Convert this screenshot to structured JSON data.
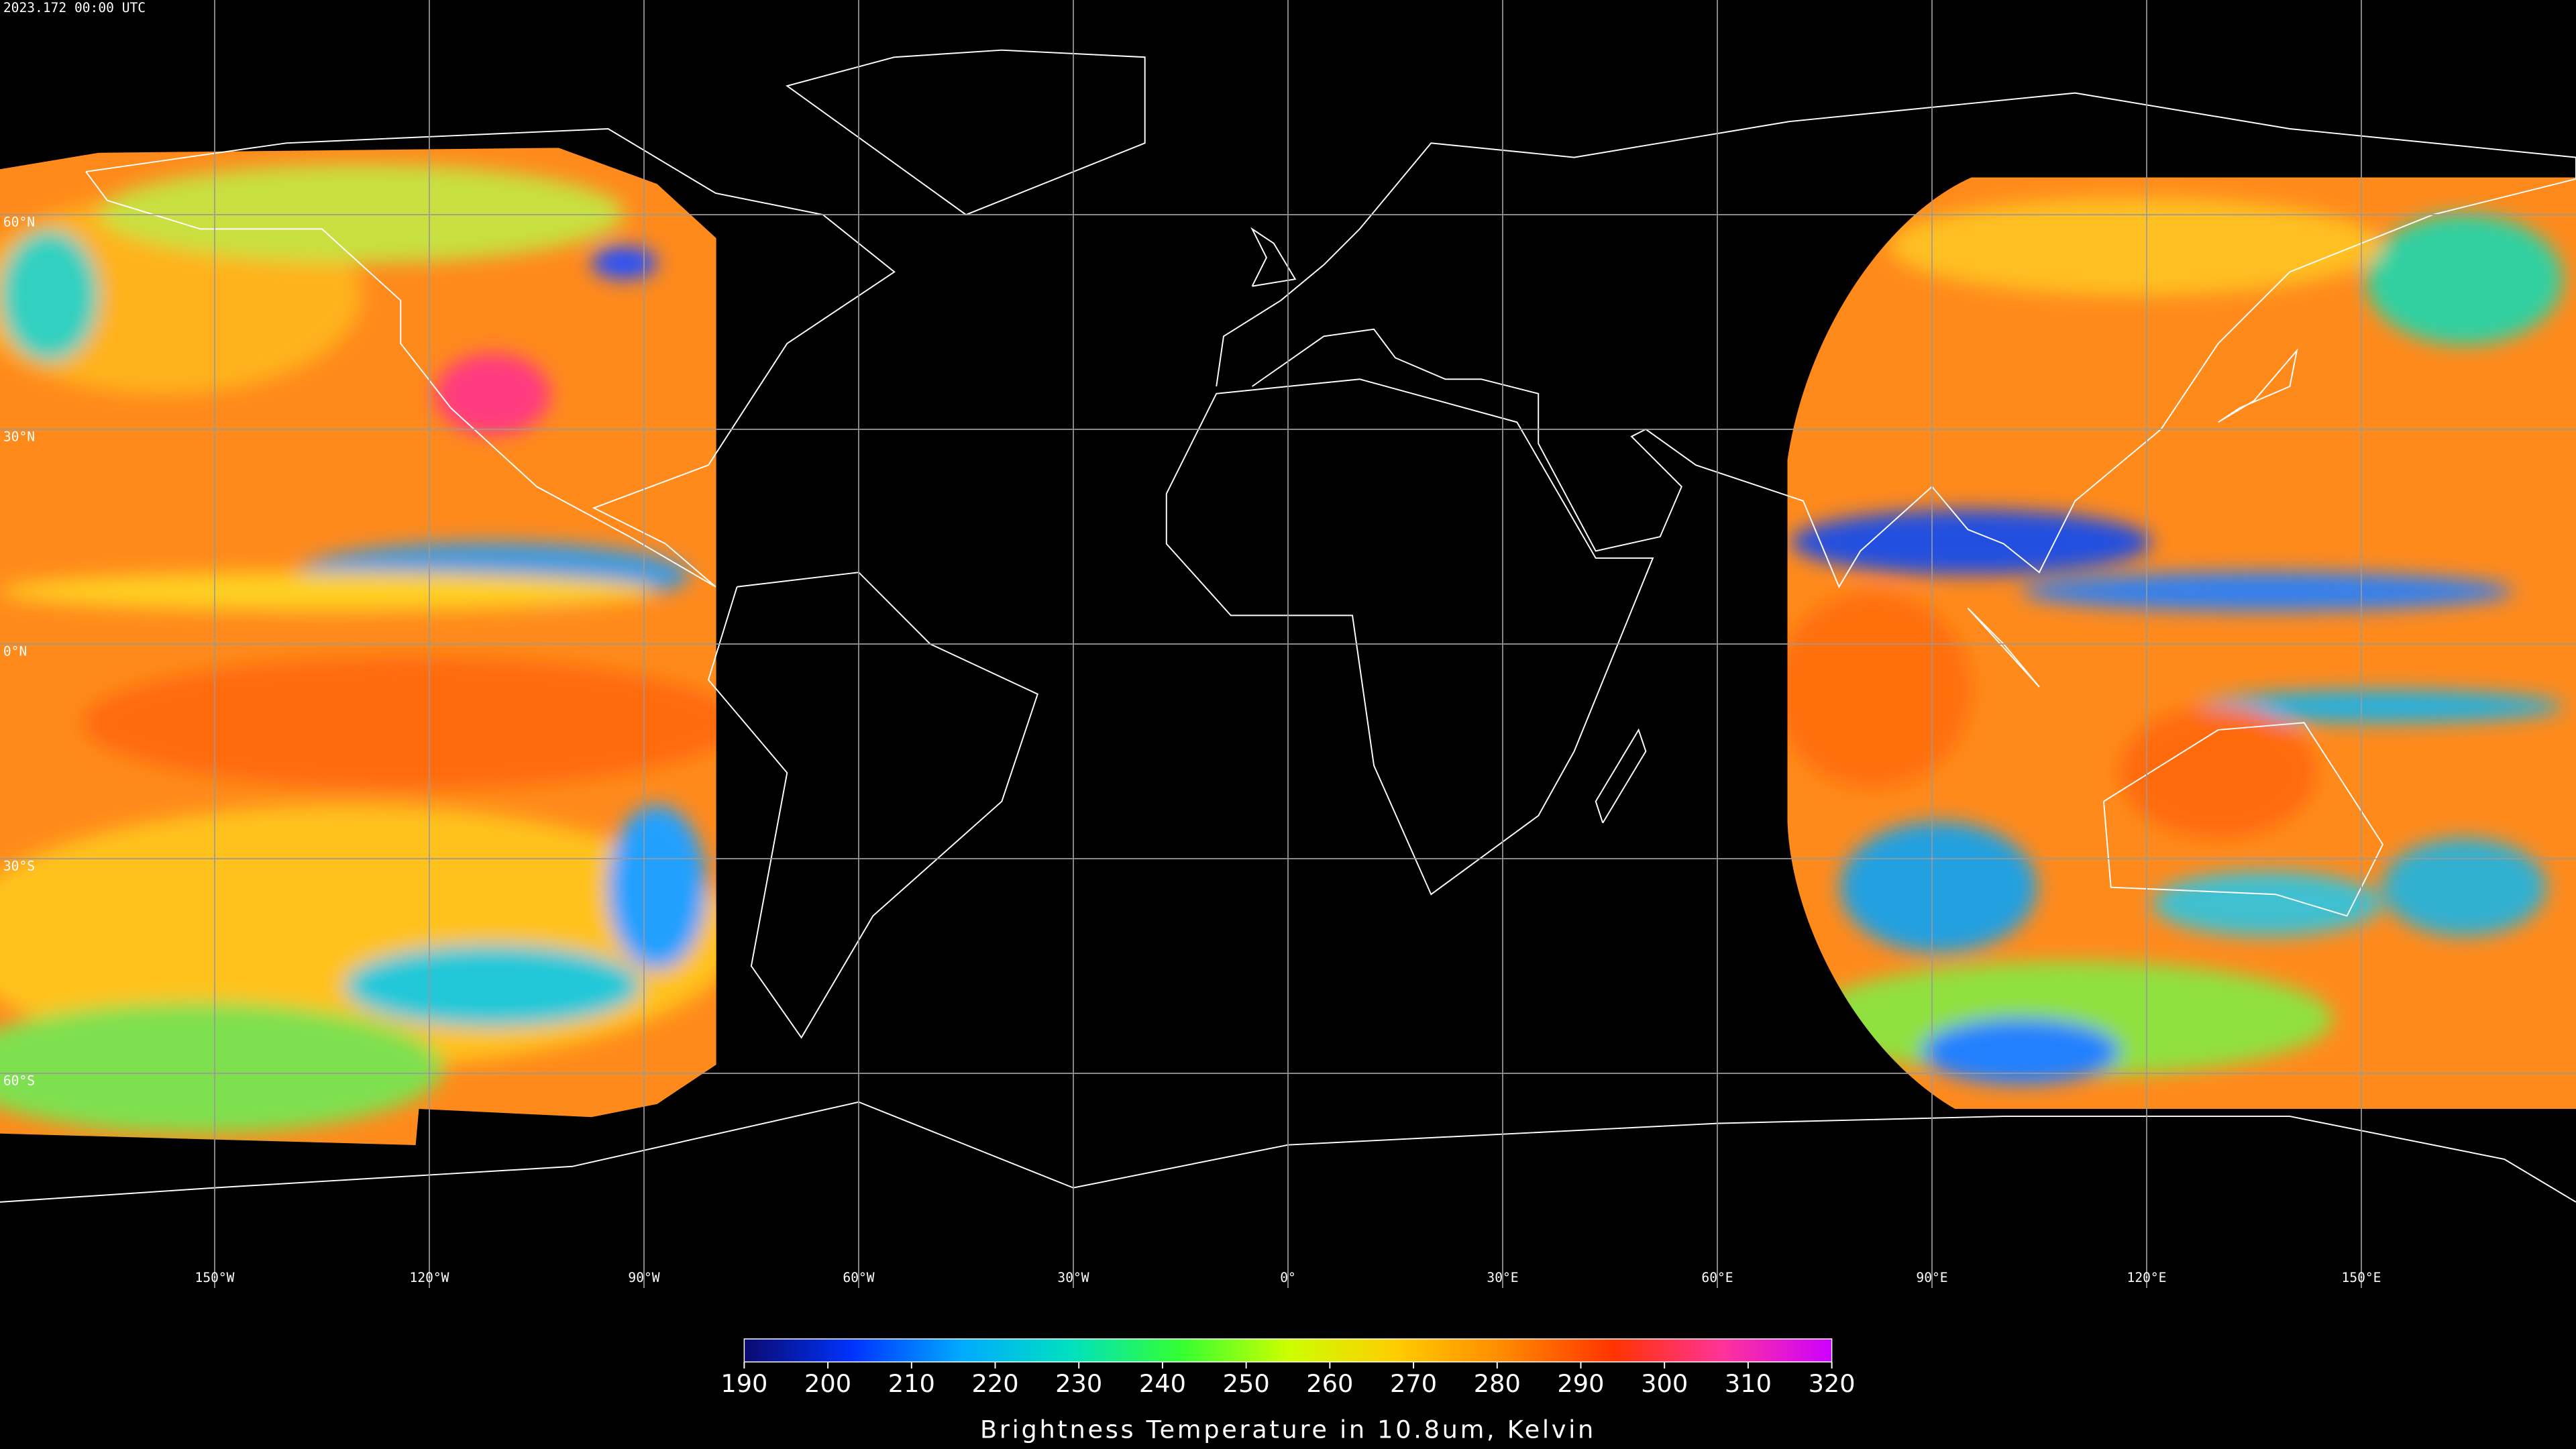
{
  "map": {
    "type": "map",
    "title": "2023.172 00:00 UTC",
    "xlim": [
      -180,
      180
    ],
    "ylim": [
      -90,
      90
    ],
    "grid": true,
    "xticks": [
      {
        "value": -150,
        "label": "150°W"
      },
      {
        "value": -120,
        "label": "120°W"
      },
      {
        "value": -90,
        "label": "90°W"
      },
      {
        "value": -60,
        "label": "60°W"
      },
      {
        "value": -30,
        "label": "30°W"
      },
      {
        "value": 0,
        "label": "0°"
      },
      {
        "value": 30,
        "label": "30°E"
      },
      {
        "value": 60,
        "label": "60°E"
      },
      {
        "value": 90,
        "label": "90°E"
      },
      {
        "value": 120,
        "label": "120°E"
      },
      {
        "value": 150,
        "label": "150°E"
      }
    ],
    "yticks": [
      {
        "value": 60,
        "label": "60°N"
      },
      {
        "value": 30,
        "label": "30°N"
      },
      {
        "value": 0,
        "label": "0°N"
      },
      {
        "value": -30,
        "label": "30°S"
      },
      {
        "value": -60,
        "label": "60°S"
      }
    ]
  },
  "colorbar": {
    "lim": [
      190,
      320
    ],
    "ticks": [
      190,
      200,
      210,
      220,
      230,
      240,
      250,
      260,
      270,
      280,
      290,
      300,
      310,
      320
    ],
    "colors": [
      "#0a0a6e",
      "#0033ff",
      "#00aaff",
      "#00e0c0",
      "#33ff33",
      "#ccff00",
      "#ffcc00",
      "#ff8800",
      "#ff3300",
      "#ff3399",
      "#cc00ff"
    ],
    "label": "Brightness Temperature in 10.8um, Kelvin"
  }
}
